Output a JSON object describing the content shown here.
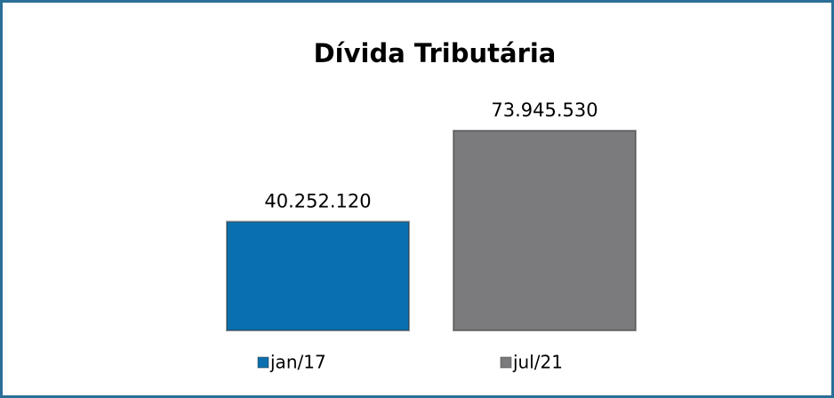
{
  "chart_data": {
    "type": "bar",
    "title": "Dívida Tributária",
    "series": [
      {
        "name": "jan/17",
        "color": "#0a6fae",
        "values": [
          40252120
        ],
        "value_labels": [
          "40.252.120"
        ]
      },
      {
        "name": "jul/21",
        "color": "#7b7b7d",
        "values": [
          73945530
        ],
        "value_labels": [
          "73.945.530"
        ]
      }
    ]
  }
}
